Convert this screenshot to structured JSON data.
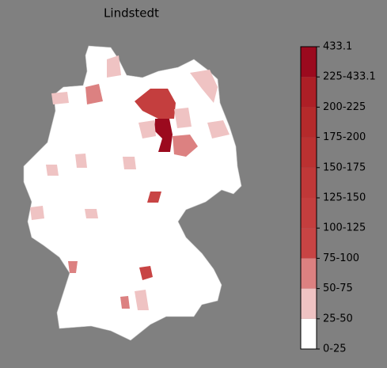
{
  "title": "Lindstedt",
  "colorbar": {
    "ticks": [
      "0-25",
      "25-50",
      "50-75",
      "75-100",
      "100-125",
      "125-150",
      "150-175",
      "175-200",
      "200-225",
      "225-433.1",
      "433.1"
    ],
    "colors": [
      "#ffffff",
      "#efc3c3",
      "#dc8181",
      "#c84444",
      "#c43e3e",
      "#c03838",
      "#bb3131",
      "#b52a2b",
      "#ad1f26",
      "#9b0a1e"
    ]
  }
}
